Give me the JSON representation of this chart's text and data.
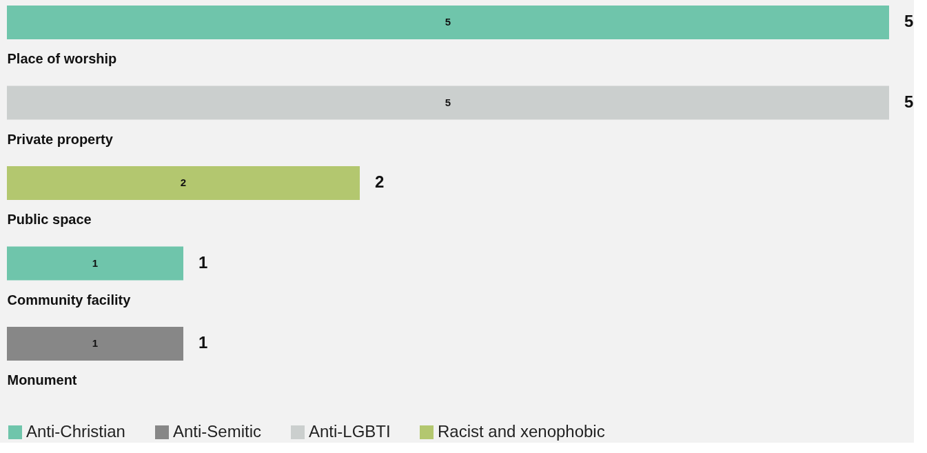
{
  "chart_data": {
    "type": "bar",
    "orientation": "horizontal",
    "stacked": true,
    "categories": [
      "Place of worship",
      "Private property",
      "Public space",
      "Community facility",
      "Monument"
    ],
    "series": [
      {
        "name": "Anti-Christian",
        "color": "#6fc5ab",
        "values": [
          5,
          null,
          null,
          1,
          null
        ]
      },
      {
        "name": "Anti-Semitic",
        "color": "#878787",
        "values": [
          null,
          null,
          null,
          null,
          1
        ]
      },
      {
        "name": "Anti-LGBTI",
        "color": "#cbcfce",
        "values": [
          null,
          5,
          null,
          null,
          null
        ]
      },
      {
        "name": "Racist and xenophobic",
        "color": "#b3c76f",
        "values": [
          null,
          null,
          2,
          null,
          null
        ]
      }
    ],
    "data_labels": true,
    "totals": [
      "5",
      "5",
      "2",
      "1",
      "1"
    ],
    "legend": "bottom",
    "grid": false
  }
}
